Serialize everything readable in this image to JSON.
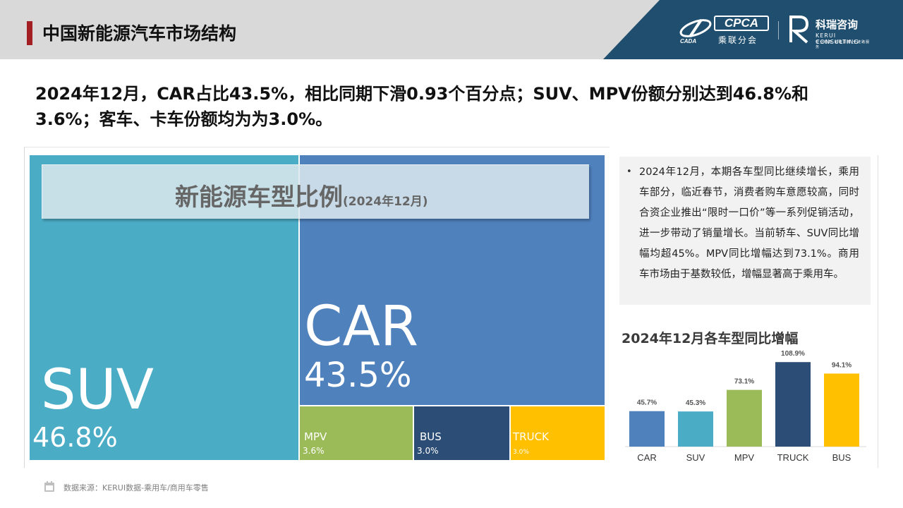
{
  "page": {
    "title": "中国新能源汽车市场结构",
    "headline": "2024年12月，CAR占比43.5%，相比同期下滑0.93个百分点；SUV、MPV份额分别达到46.8%和3.6%；客车、卡车份额均为为3.0%。",
    "source": "数据来源：KERUI数据-乘用车/商用车零售"
  },
  "logos": {
    "cpca_word": "CPCA",
    "cpca_sub": "乘联分会",
    "cpca_mark_text": "CADA",
    "kerui_name": "科瑞咨询",
    "kerui_en": "KERUI CONSULTING",
    "kerui_tag": "专业视角 前瞻洞察 全链路服务"
  },
  "colors": {
    "header_band": "#d9d9d9",
    "header_dark": "#1f4e6e",
    "accent_red": "#a31f24",
    "car": "#4f81bd",
    "suv": "#4bacc6",
    "mpv": "#9bbb59",
    "bus": "#2c4d75",
    "truck": "#ffc000"
  },
  "chart_data": [
    {
      "type": "treemap",
      "title": "新能源车型比例",
      "subtitle": "(2024年12月)",
      "unit": "%",
      "items": [
        {
          "key": "suv",
          "name": "SUV",
          "value": 46.8,
          "label": "46.8%",
          "color": "#4bacc6"
        },
        {
          "key": "car",
          "name": "CAR",
          "value": 43.5,
          "label": "43.5%",
          "color": "#4f81bd"
        },
        {
          "key": "mpv",
          "name": "MPV",
          "value": 3.6,
          "label": "3.6%",
          "color": "#9bbb59"
        },
        {
          "key": "bus",
          "name": "BUS",
          "value": 3.0,
          "label": "3.0%",
          "color": "#2c4d75"
        },
        {
          "key": "truck",
          "name": "TRUCK",
          "value": 3.0,
          "label": "3.0%",
          "color": "#ffc000"
        }
      ]
    },
    {
      "type": "bar",
      "title": "2024年12月各车型同比增幅",
      "categories": [
        "CAR",
        "SUV",
        "MPV",
        "TRUCK",
        "BUS"
      ],
      "values": [
        45.7,
        45.3,
        73.1,
        108.9,
        94.1
      ],
      "labels": [
        "45.7%",
        "45.3%",
        "73.1%",
        "108.9%",
        "94.1%"
      ],
      "colors": [
        "#4f81bd",
        "#4bacc6",
        "#9bbb59",
        "#2c4d75",
        "#ffc000"
      ],
      "ylim": [
        0,
        110
      ],
      "grid": false,
      "xlabel": "",
      "ylabel": ""
    }
  ],
  "note": {
    "bullet": "•",
    "text": "2024年12月，本期各车型同比继续增长，乘用车部分，临近春节，消费者购车意愿较高，同时合资企业推出“限时一口价”等一系列促销活动，进一步带动了销量增长。当前轿车、SUV同比增幅均超45%。MPV同比增幅达到73.1%。商用车市场由于基数较低，增幅显著高于乘用车。"
  }
}
